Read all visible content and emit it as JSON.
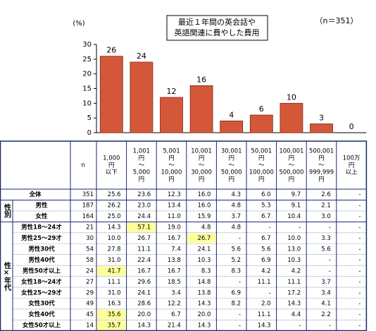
{
  "chart_data": {
    "type": "bar",
    "title": [
      "最近１年間の英会話や",
      "英語関連に費やした費用"
    ],
    "n_label": "（n＝351）",
    "y_unit": "(%)",
    "values": [
      26,
      24,
      12,
      16,
      4,
      6,
      10,
      3,
      0
    ],
    "color": "#d4573a",
    "ylim": [
      0,
      30
    ],
    "yticks": [
      0,
      5,
      10,
      15,
      20,
      25,
      30
    ]
  },
  "table": {
    "n_header": "n",
    "columns": [
      [
        "1,000",
        "円",
        "以下"
      ],
      [
        "1,001",
        "円",
        "～",
        "5,000",
        "円"
      ],
      [
        "5,001",
        "円",
        "～",
        "10,000",
        "円"
      ],
      [
        "10,001",
        "円",
        "～",
        "30,000",
        "円"
      ],
      [
        "30,001",
        "円",
        "～",
        "50,000",
        "円"
      ],
      [
        "50,001",
        "円",
        "～",
        "100,000",
        "円"
      ],
      [
        "100,001",
        "円",
        "～",
        "500,000",
        "円"
      ],
      [
        "500,001",
        "円",
        "～",
        "999,999",
        "円"
      ],
      [
        "100万",
        "円",
        "以上"
      ]
    ],
    "highlight_color": "#ffff99",
    "sections": [
      {
        "rows": [
          {
            "label": "全体",
            "n": "351",
            "values": [
              "25.6",
              "23.6",
              "12.3",
              "16.0",
              "4.3",
              "6.0",
              "9.7",
              "2.6",
              "-"
            ]
          }
        ]
      },
      {
        "label": "性別",
        "rows": [
          {
            "label": "男性",
            "n": "187",
            "values": [
              "26.2",
              "23.0",
              "13.4",
              "16.0",
              "4.8",
              "5.3",
              "9.1",
              "2.1",
              "-"
            ]
          },
          {
            "label": "女性",
            "n": "164",
            "values": [
              "25.0",
              "24.4",
              "11.0",
              "15.9",
              "3.7",
              "6.7",
              "10.4",
              "3.0",
              "-"
            ]
          }
        ]
      },
      {
        "label": "性×年代",
        "rows": [
          {
            "label": "男性18～24才",
            "n": "21",
            "values": [
              "14.3",
              "57.1",
              "19.0",
              "4.8",
              "4.8",
              "-",
              "-",
              "-",
              "-"
            ],
            "highlight": [
              1
            ]
          },
          {
            "label": "男性25～29才",
            "n": "30",
            "values": [
              "10.0",
              "26.7",
              "16.7",
              "26.7",
              "-",
              "6.7",
              "10.0",
              "3.3",
              "-"
            ],
            "highlight": [
              3
            ]
          },
          {
            "label": "男性30代",
            "n": "54",
            "values": [
              "27.8",
              "11.1",
              "7.4",
              "24.1",
              "5.6",
              "5.6",
              "13.0",
              "5.6",
              "-"
            ]
          },
          {
            "label": "男性40代",
            "n": "58",
            "values": [
              "31.0",
              "22.4",
              "13.8",
              "10.3",
              "5.2",
              "6.9",
              "10.3",
              "-",
              "-"
            ]
          },
          {
            "label": "男性50才以上",
            "n": "24",
            "values": [
              "41.7",
              "16.7",
              "16.7",
              "8.3",
              "8.3",
              "4.2",
              "4.2",
              "-",
              "-"
            ],
            "highlight": [
              0
            ]
          },
          {
            "label": "女性18～24才",
            "n": "27",
            "values": [
              "11.1",
              "29.6",
              "18.5",
              "14.8",
              "-",
              "11.1",
              "11.1",
              "3.7",
              "-"
            ]
          },
          {
            "label": "女性25～29才",
            "n": "29",
            "values": [
              "31.0",
              "24.1",
              "3.4",
              "13.8",
              "6.9",
              "-",
              "17.2",
              "3.4",
              "-"
            ]
          },
          {
            "label": "女性30代",
            "n": "49",
            "values": [
              "16.3",
              "28.6",
              "12.2",
              "14.3",
              "8.2",
              "2.0",
              "14.3",
              "4.1",
              "-"
            ]
          },
          {
            "label": "女性40代",
            "n": "45",
            "values": [
              "35.6",
              "20.0",
              "6.7",
              "20.0",
              "-",
              "11.1",
              "4.4",
              "2.2",
              "-"
            ],
            "highlight": [
              0
            ]
          },
          {
            "label": "女性50才以上",
            "n": "14",
            "values": [
              "35.7",
              "14.3",
              "21.4",
              "14.3",
              "-",
              "14.3",
              "-",
              "-",
              "-"
            ],
            "highlight": [
              0
            ]
          }
        ]
      }
    ]
  }
}
